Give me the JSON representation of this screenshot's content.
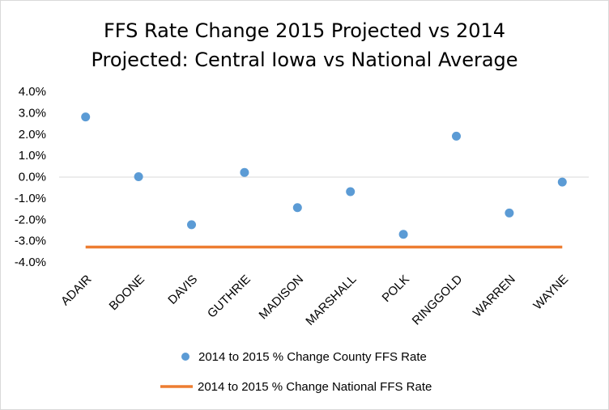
{
  "chart_data": {
    "type": "scatter",
    "title_line1": "FFS Rate Change 2015 Projected vs 2014",
    "title_line2": "Projected: Central Iowa vs National Average",
    "xlabel": "",
    "ylabel": "",
    "categories": [
      "ADAIR",
      "BOONE",
      "DAVIS",
      "GUTHRIE",
      "MADISON",
      "MARSHALL",
      "POLK",
      "RINGGOLD",
      "WARREN",
      "WAYNE"
    ],
    "ylim": [
      -4.0,
      4.0
    ],
    "yticks": [
      "4.0%",
      "3.0%",
      "2.0%",
      "1.0%",
      "0.0%",
      "-1.0%",
      "-2.0%",
      "-3.0%",
      "-4.0%"
    ],
    "grid": false,
    "legend_position": "bottom",
    "series": [
      {
        "name": "2014 to 2015 % Change County FFS Rate",
        "kind": "scatter",
        "color": "#5b9bd5",
        "values": [
          2.8,
          0.0,
          -2.25,
          0.2,
          -1.45,
          -0.7,
          -2.7,
          1.9,
          -1.7,
          -0.25
        ]
      },
      {
        "name": "2014 to 2015 % Change National FFS Rate",
        "kind": "line",
        "color": "#ed7d31",
        "values": [
          -3.3,
          -3.3,
          -3.3,
          -3.3,
          -3.3,
          -3.3,
          -3.3,
          -3.3,
          -3.3,
          -3.3
        ]
      }
    ]
  }
}
